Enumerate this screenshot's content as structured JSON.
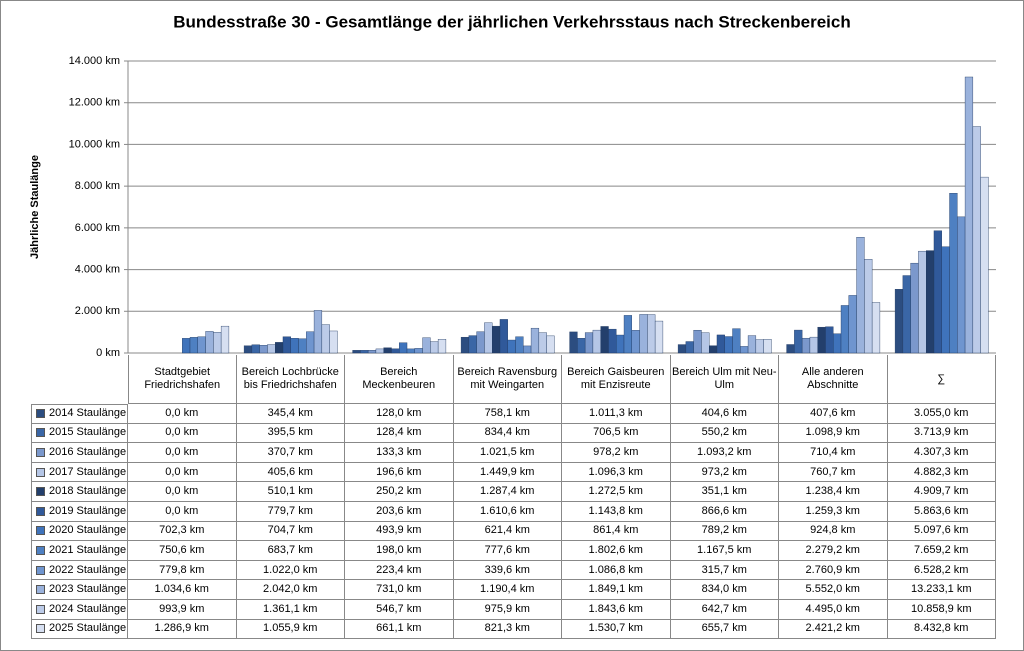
{
  "chart_data": {
    "type": "bar",
    "title": "Bundesstraße 30 - Gesamtlänge der jährlichen Verkehrsstaus nach Streckenbereich",
    "y_label": "Jährliche Staulänge",
    "categories": [
      "Stadtgebiet Friedrichshafen",
      "Bereich Lochbrücke bis Friedrichshafen",
      "Bereich Meckenbeuren",
      "Bereich Ravensburg mit Weingarten",
      "Bereich Gaisbeuren mit Enzisreute",
      "Bereich Ulm mit Neu-Ulm",
      "Alle anderen Abschnitte",
      "∑"
    ],
    "ylim": [
      0,
      14000
    ],
    "yticks": [
      {
        "value": 0,
        "label": "0 km"
      },
      {
        "value": 2000,
        "label": "2.000 km"
      },
      {
        "value": 4000,
        "label": "4.000 km"
      },
      {
        "value": 6000,
        "label": "6.000 km"
      },
      {
        "value": 8000,
        "label": "8.000 km"
      },
      {
        "value": 10000,
        "label": "10.000 km"
      },
      {
        "value": 12000,
        "label": "12.000 km"
      },
      {
        "value": 14000,
        "label": "14.000 km"
      }
    ],
    "grid": true,
    "series": [
      {
        "name": "2014 Staulänge",
        "color": "#2c4d80",
        "values": [
          0.0,
          345.4,
          128.0,
          758.1,
          1011.3,
          404.6,
          407.6,
          3055.0
        ],
        "value_labels": [
          "0,0 km",
          "345,4 km",
          "128,0 km",
          "758,1 km",
          "1.011,3 km",
          "404,6 km",
          "407,6 km",
          "3.055,0 km"
        ]
      },
      {
        "name": "2015 Staulänge",
        "color": "#3a66a6",
        "values": [
          0.0,
          395.5,
          128.4,
          834.4,
          706.5,
          550.2,
          1098.9,
          3713.9
        ],
        "value_labels": [
          "0,0 km",
          "395,5 km",
          "128,4 km",
          "834,4 km",
          "706,5 km",
          "550,2 km",
          "1.098,9 km",
          "3.713,9 km"
        ]
      },
      {
        "name": "2016 Staulänge",
        "color": "#7b98cc",
        "values": [
          0.0,
          370.7,
          133.3,
          1021.5,
          978.2,
          1093.2,
          710.4,
          4307.3
        ],
        "value_labels": [
          "0,0 km",
          "370,7 km",
          "133,3 km",
          "1.021,5 km",
          "978,2 km",
          "1.093,2 km",
          "710,4 km",
          "4.307,3 km"
        ]
      },
      {
        "name": "2017 Staulänge",
        "color": "#b5c6e6",
        "values": [
          0.0,
          405.6,
          196.6,
          1449.9,
          1096.3,
          973.2,
          760.7,
          4882.3
        ],
        "value_labels": [
          "0,0 km",
          "405,6 km",
          "196,6 km",
          "1.449,9 km",
          "1.096,3 km",
          "973,2 km",
          "760,7 km",
          "4.882,3 km"
        ]
      },
      {
        "name": "2018 Staulänge",
        "color": "#233f6c",
        "values": [
          0.0,
          510.1,
          250.2,
          1287.4,
          1272.5,
          351.1,
          1238.4,
          4909.7
        ],
        "value_labels": [
          "0,0 km",
          "510,1 km",
          "250,2 km",
          "1.287,4 km",
          "1.272,5 km",
          "351,1 km",
          "1.238,4 km",
          "4.909,7 km"
        ]
      },
      {
        "name": "2019 Staulänge",
        "color": "#30599a",
        "values": [
          0.0,
          779.7,
          203.6,
          1610.6,
          1143.8,
          866.6,
          1259.3,
          5863.6
        ],
        "value_labels": [
          "0,0 km",
          "779,7 km",
          "203,6 km",
          "1.610,6 km",
          "1.143,8 km",
          "866,6 km",
          "1.259,3 km",
          "5.863,6 km"
        ]
      },
      {
        "name": "2020 Staulänge",
        "color": "#3f73bb",
        "values": [
          702.3,
          704.7,
          493.9,
          621.4,
          861.4,
          789.2,
          924.8,
          5097.6
        ],
        "value_labels": [
          "702,3 km",
          "704,7 km",
          "493,9 km",
          "621,4 km",
          "861,4 km",
          "789,2 km",
          "924,8 km",
          "5.097,6 km"
        ]
      },
      {
        "name": "2021 Staulänge",
        "color": "#4e80c2",
        "values": [
          750.6,
          683.7,
          198.0,
          777.6,
          1802.6,
          1167.5,
          2279.2,
          7659.2
        ],
        "value_labels": [
          "750,6 km",
          "683,7 km",
          "198,0 km",
          "777,6 km",
          "1.802,6 km",
          "1.167,5 km",
          "2.279,2 km",
          "7.659,2 km"
        ]
      },
      {
        "name": "2022 Staulänge",
        "color": "#6f95cf",
        "values": [
          779.8,
          1022.0,
          223.4,
          339.6,
          1086.8,
          315.7,
          2760.9,
          6528.2
        ],
        "value_labels": [
          "779,8 km",
          "1.022,0 km",
          "223,4 km",
          "339,6 km",
          "1.086,8 km",
          "315,7 km",
          "2.760,9 km",
          "6.528,2 km"
        ]
      },
      {
        "name": "2023 Staulänge",
        "color": "#9ab2dc",
        "values": [
          1034.6,
          2042.0,
          731.0,
          1190.4,
          1849.1,
          834.0,
          5552.0,
          13233.1
        ],
        "value_labels": [
          "1.034,6 km",
          "2.042,0 km",
          "731,0 km",
          "1.190,4 km",
          "1.849,1 km",
          "834,0 km",
          "5.552,0 km",
          "13.233,1 km"
        ]
      },
      {
        "name": "2024 Staulänge",
        "color": "#bccbe8",
        "values": [
          993.9,
          1361.1,
          546.7,
          975.9,
          1843.6,
          642.7,
          4495.0,
          10858.9
        ],
        "value_labels": [
          "993,9 km",
          "1.361,1 km",
          "546,7 km",
          "975,9 km",
          "1.843,6 km",
          "642,7 km",
          "4.495,0 km",
          "10.858,9 km"
        ]
      },
      {
        "name": "2025 Staulänge",
        "color": "#d6dff1",
        "values": [
          1286.9,
          1055.9,
          661.1,
          821.3,
          1530.7,
          655.7,
          2421.2,
          8432.8
        ],
        "value_labels": [
          "1.286,9 km",
          "1.055,9 km",
          "661,1 km",
          "821,3 km",
          "1.530,7 km",
          "655,7 km",
          "2.421,2 km",
          "8.432,8 km"
        ]
      }
    ]
  }
}
